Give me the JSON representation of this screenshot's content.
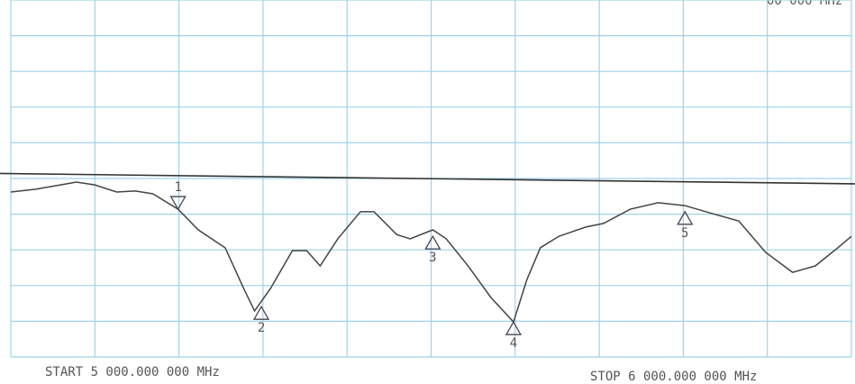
{
  "chart_data": {
    "type": "line",
    "start_label": "START 5 000.000 000 MHz",
    "stop_label": "STOP 6 000.000 000 MHz",
    "top_right_label": "00 000 MHz",
    "xlim": [
      5000,
      6000
    ],
    "xticks": [
      5000,
      5100,
      5200,
      5300,
      5400,
      5500,
      5600,
      5700,
      5800,
      5900,
      6000
    ],
    "ylim": [
      0,
      10
    ],
    "yticks": [
      0,
      1,
      2,
      3,
      4,
      5,
      6,
      7,
      8,
      9,
      10
    ],
    "grid": true,
    "x": [
      5000,
      5030,
      5078,
      5100,
      5126,
      5148,
      5169,
      5199,
      5223,
      5255,
      5277,
      5290,
      5309,
      5335,
      5352,
      5368,
      5389,
      5416,
      5432,
      5459,
      5475,
      5502,
      5518,
      5544,
      5571,
      5598,
      5614,
      5630,
      5652,
      5684,
      5705,
      5737,
      5770,
      5802,
      5834,
      5866,
      5898,
      5930,
      5957,
      5984,
      6000
    ],
    "series": [
      {
        "color": "#444444",
        "values": [
          4.62,
          4.7,
          4.9,
          4.82,
          4.62,
          4.65,
          4.57,
          4.14,
          3.56,
          3.06,
          1.92,
          1.29,
          1.92,
          2.98,
          2.98,
          2.55,
          3.31,
          4.07,
          4.07,
          3.43,
          3.31,
          3.56,
          3.31,
          2.55,
          1.67,
          0.98,
          2.17,
          3.06,
          3.38,
          3.64,
          3.74,
          4.14,
          4.32,
          4.24,
          4.02,
          3.81,
          2.93,
          2.37,
          2.55,
          3.06,
          3.38
        ]
      }
    ],
    "reference_line": {
      "color": "#333333",
      "values": [
        5.14,
        4.85
      ]
    },
    "markers": [
      {
        "label": "1",
        "x": 5199,
        "y": 4.14,
        "direction": "down"
      },
      {
        "label": "2",
        "x": 5298,
        "y": 1.41,
        "direction": "up"
      },
      {
        "label": "3",
        "x": 5502,
        "y": 3.38,
        "direction": "up"
      },
      {
        "label": "4",
        "x": 5598,
        "y": 0.98,
        "direction": "up"
      },
      {
        "label": "5",
        "x": 5802,
        "y": 4.07,
        "direction": "up"
      }
    ]
  }
}
